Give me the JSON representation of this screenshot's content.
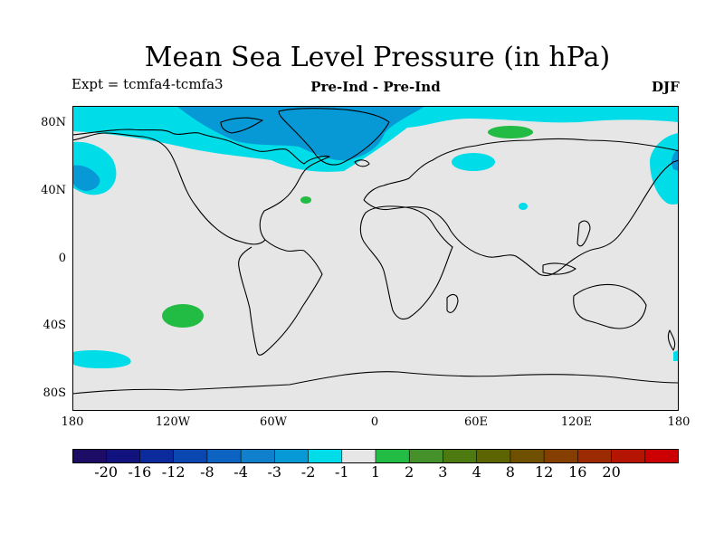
{
  "title": "Mean Sea Level Pressure (in hPa)",
  "experiment_label": "Expt = tcmfa4-tcmfa3",
  "comparison_label": "Pre-Ind - Pre-Ind",
  "season_label": "DJF",
  "lat_labels": [
    "80N",
    "40N",
    "0",
    "40S",
    "80S"
  ],
  "lon_labels": [
    "180",
    "120W",
    "60W",
    "0",
    "60E",
    "120E",
    "180"
  ],
  "colors": {
    "land_background": "#e6e6e6",
    "band_minus2_minus1": "#00dde8",
    "band_minus3_minus2": "#0099d6",
    "band_1_2": "#22bb44",
    "coastline": "#000000"
  },
  "colorbar": {
    "colors": [
      "#1c0c66",
      "#12127f",
      "#0b2b9c",
      "#0a47b0",
      "#0d63c2",
      "#1080cc",
      "#0799d6",
      "#00dde8",
      "#e6e6e6",
      "#22bb44",
      "#44902a",
      "#4c7a10",
      "#5c6400",
      "#6e5000",
      "#843e00",
      "#9c2a00",
      "#b41400",
      "#cc0000"
    ],
    "labels": [
      "-20",
      "-16",
      "-12",
      "-8",
      "-4",
      "-3",
      "-2",
      "-1",
      "1",
      "2",
      "3",
      "4",
      "8",
      "12",
      "16",
      "20"
    ]
  }
}
